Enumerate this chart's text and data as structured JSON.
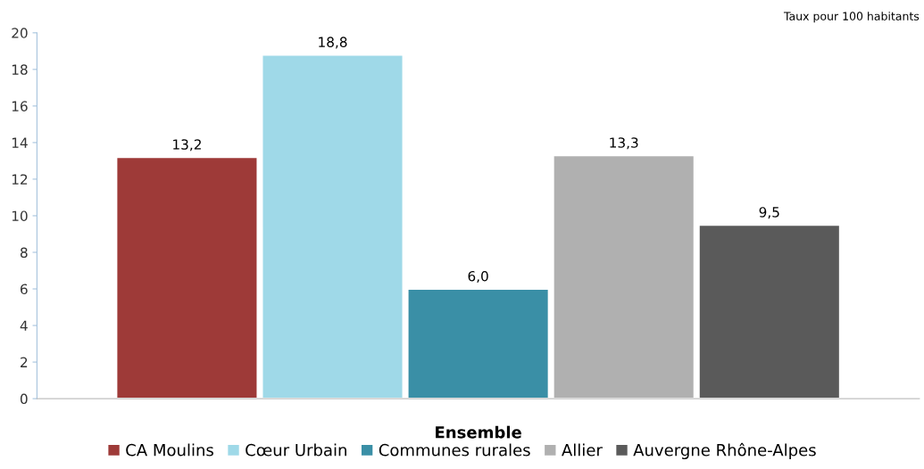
{
  "chart_data": {
    "type": "bar",
    "categories": [
      "Ensemble"
    ],
    "series": [
      {
        "name": "CA Moulins",
        "color": "#9e3a38",
        "values": [
          13.2
        ],
        "value_labels": [
          "13,2"
        ]
      },
      {
        "name": "Cœur Urbain",
        "color": "#9fd9e8",
        "values": [
          18.8
        ],
        "value_labels": [
          "18,8"
        ]
      },
      {
        "name": "Communes rurales",
        "color": "#3a8fa6",
        "values": [
          6.0
        ],
        "value_labels": [
          "6,0"
        ]
      },
      {
        "name": "Allier",
        "color": "#b0b0b0",
        "values": [
          13.3
        ],
        "value_labels": [
          "13,3"
        ]
      },
      {
        "name": "Auvergne Rhône-Alpes",
        "color": "#5a5a5a",
        "values": [
          9.5
        ],
        "value_labels": [
          "9,5"
        ]
      }
    ],
    "ylim": [
      0,
      20
    ],
    "yticks": [
      0,
      2,
      4,
      6,
      8,
      10,
      12,
      14,
      16,
      18,
      20
    ],
    "annotations": [
      "Taux pour 100 habitants"
    ],
    "grid": false,
    "legend": "bottom"
  }
}
